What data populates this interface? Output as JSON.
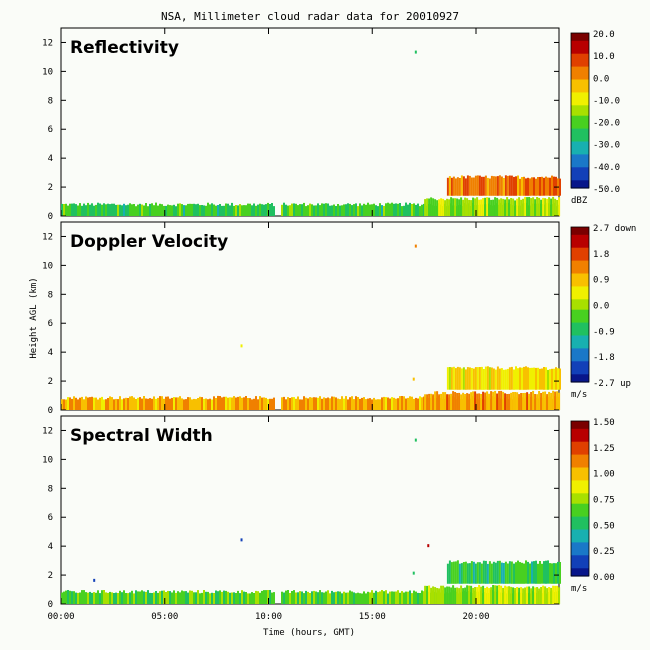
{
  "title": "NSA, Millimeter cloud radar data for 20010927",
  "colors": {
    "background": "#fafcf8",
    "scale": [
      "#08168a",
      "#1240b8",
      "#1a78c8",
      "#18b0b0",
      "#20c060",
      "#48d020",
      "#a8e000",
      "#f0f000",
      "#f8c000",
      "#f08000",
      "#e04000",
      "#b80000",
      "#7a0000"
    ]
  },
  "chart_data": {
    "type": "heatmap",
    "title": "NSA, Millimeter cloud radar data for 20010927",
    "xlabel": "Time (hours, GMT)",
    "ylabel": "Height AGL (km)",
    "x_ticks": [
      "00:00",
      "05:00",
      "10:00",
      "15:00",
      "20:00"
    ],
    "x_tick_hours": [
      0,
      5,
      10,
      15,
      20
    ],
    "xlim_hours": [
      0,
      24
    ],
    "y_ticks": [
      "0",
      "2",
      "4",
      "6",
      "8",
      "10",
      "12"
    ],
    "y_tick_values": [
      0,
      2,
      4,
      6,
      8,
      10,
      12
    ],
    "ylim_km": [
      0,
      13
    ],
    "data_gap_hours": [
      10.3,
      10.6
    ],
    "panels": [
      {
        "name": "Reflectivity",
        "colorbar_ticks": [
          "20.0",
          "10.0",
          "0.0",
          "-10.0",
          "-20.0",
          "-30.0",
          "-40.0",
          "-50.0"
        ],
        "colorbar_unit": "dBZ",
        "layers": [
          {
            "start_h": 0,
            "end_h": 24,
            "bottom_km": 0.0,
            "top_km": 0.8,
            "level": 0.38
          },
          {
            "start_h": 17.5,
            "end_h": 24,
            "bottom_km": 0.0,
            "top_km": 1.2,
            "level": 0.48
          },
          {
            "start_h": 18.6,
            "end_h": 24,
            "bottom_km": 1.4,
            "top_km": 2.7,
            "level": 0.78
          }
        ],
        "specks": [
          {
            "h": 17.1,
            "km": 11.3,
            "level": 0.3
          }
        ]
      },
      {
        "name": "Doppler Velocity",
        "colorbar_ticks": [
          "2.7 down",
          "1.8",
          "0.9",
          "0.0",
          "-0.9",
          "-1.8",
          "-2.7 up"
        ],
        "colorbar_unit": "m/s",
        "layers": [
          {
            "start_h": 0,
            "end_h": 24,
            "bottom_km": 0.0,
            "top_km": 0.85,
            "level": 0.7
          },
          {
            "start_h": 17.5,
            "end_h": 24,
            "bottom_km": 0.0,
            "top_km": 1.2,
            "level": 0.72
          },
          {
            "start_h": 18.6,
            "end_h": 24,
            "bottom_km": 1.4,
            "top_km": 2.9,
            "level": 0.62
          }
        ],
        "specks": [
          {
            "h": 17.1,
            "km": 11.3,
            "level": 0.75
          },
          {
            "h": 8.7,
            "km": 4.4,
            "level": 0.6
          },
          {
            "h": 17.0,
            "km": 2.1,
            "level": 0.7
          }
        ]
      },
      {
        "name": "Spectral Width",
        "colorbar_ticks": [
          "1.50",
          "1.25",
          "1.00",
          "0.75",
          "0.50",
          "0.25",
          "0.00"
        ],
        "colorbar_unit": "m/s",
        "layers": [
          {
            "start_h": 0,
            "end_h": 24,
            "bottom_km": 0.0,
            "top_km": 0.85,
            "level": 0.42
          },
          {
            "start_h": 17.5,
            "end_h": 24,
            "bottom_km": 0.0,
            "top_km": 1.2,
            "level": 0.5
          },
          {
            "start_h": 18.6,
            "end_h": 24,
            "bottom_km": 1.4,
            "top_km": 2.9,
            "level": 0.36
          }
        ],
        "specks": [
          {
            "h": 17.1,
            "km": 11.3,
            "level": 0.35
          },
          {
            "h": 8.7,
            "km": 4.4,
            "level": 0.1
          },
          {
            "h": 1.6,
            "km": 1.6,
            "level": 0.1
          },
          {
            "h": 17.7,
            "km": 4.0,
            "level": 0.9
          },
          {
            "h": 17.0,
            "km": 2.1,
            "level": 0.3
          }
        ]
      }
    ]
  }
}
